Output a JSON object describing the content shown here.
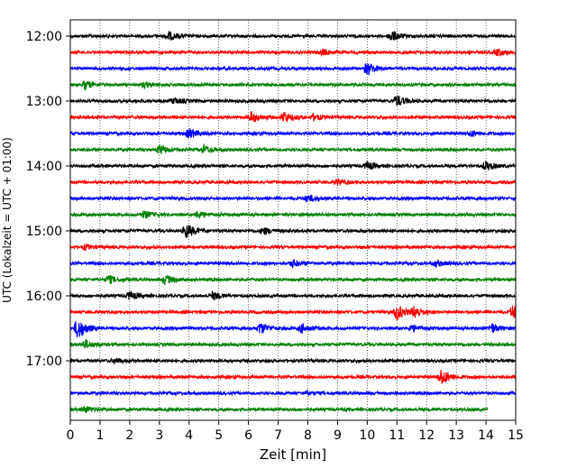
{
  "chart_data": {
    "type": "line",
    "title": "",
    "xlabel": "Zeit  [min]",
    "ylabel": "UTC (Lokalzeit = UTC + 01:00)",
    "xlim": [
      0,
      15
    ],
    "x_ticks": [
      0,
      1,
      2,
      3,
      4,
      5,
      6,
      7,
      8,
      9,
      10,
      11,
      12,
      13,
      14,
      15
    ],
    "x_tick_labels": [
      "0",
      "1",
      "2",
      "3",
      "4",
      "5",
      "6",
      "7",
      "8",
      "9",
      "10",
      "11",
      "12",
      "13",
      "14",
      "15"
    ],
    "y_tick_labels": [
      "12:00",
      "13:00",
      "14:00",
      "15:00",
      "16:00",
      "17:00"
    ],
    "y_tick_traces": [
      0,
      4,
      8,
      12,
      16,
      20
    ],
    "trace_interval_min": 15,
    "trace_colors": [
      "#000000",
      "#ff0000",
      "#0000ff",
      "#008000"
    ],
    "vertical_grid": true,
    "grid_style": "dotted",
    "traces": [
      {
        "start": "12:00",
        "events": [
          [
            3.3,
            0.8
          ],
          [
            10.8,
            1.0
          ]
        ]
      },
      {
        "start": "12:15",
        "events": [
          [
            8.5,
            0.5
          ],
          [
            14.4,
            0.6
          ]
        ]
      },
      {
        "start": "12:30",
        "events": [
          [
            10.0,
            1.2
          ]
        ]
      },
      {
        "start": "12:45",
        "events": [
          [
            0.5,
            0.7
          ],
          [
            2.5,
            0.5
          ]
        ]
      },
      {
        "start": "13:00",
        "events": [
          [
            11.0,
            1.0
          ],
          [
            3.5,
            0.5
          ]
        ]
      },
      {
        "start": "13:15",
        "events": [
          [
            6.1,
            1.0
          ],
          [
            7.2,
            1.0
          ],
          [
            8.2,
            0.5
          ]
        ]
      },
      {
        "start": "13:30",
        "events": [
          [
            4.0,
            0.9
          ],
          [
            13.5,
            0.5
          ]
        ]
      },
      {
        "start": "13:45",
        "events": [
          [
            3.0,
            0.8
          ],
          [
            4.5,
            0.7
          ]
        ]
      },
      {
        "start": "14:00",
        "events": [
          [
            10.0,
            0.7
          ],
          [
            14.0,
            0.8
          ]
        ]
      },
      {
        "start": "14:15",
        "events": [
          [
            9.0,
            0.5
          ]
        ]
      },
      {
        "start": "14:30",
        "events": [
          [
            8.0,
            0.6
          ]
        ]
      },
      {
        "start": "14:45",
        "events": [
          [
            2.5,
            0.6
          ],
          [
            4.3,
            0.6
          ]
        ]
      },
      {
        "start": "15:00",
        "events": [
          [
            3.9,
            1.3
          ],
          [
            6.5,
            0.6
          ]
        ]
      },
      {
        "start": "15:15",
        "events": [
          [
            0.5,
            0.4
          ]
        ]
      },
      {
        "start": "15:30",
        "events": [
          [
            7.5,
            0.6
          ],
          [
            12.3,
            0.5
          ]
        ]
      },
      {
        "start": "15:45",
        "events": [
          [
            1.3,
            0.7
          ],
          [
            3.2,
            0.8
          ]
        ]
      },
      {
        "start": "16:00",
        "events": [
          [
            2.0,
            0.7
          ],
          [
            4.8,
            0.7
          ]
        ]
      },
      {
        "start": "16:15",
        "events": [
          [
            11.0,
            1.4
          ],
          [
            11.6,
            1.0
          ],
          [
            14.9,
            1.3
          ]
        ]
      },
      {
        "start": "16:30",
        "events": [
          [
            0.25,
            2.0
          ],
          [
            6.4,
            1.0
          ],
          [
            7.8,
            0.8
          ],
          [
            11.5,
            0.6
          ],
          [
            14.2,
            0.8
          ]
        ]
      },
      {
        "start": "16:45",
        "events": [
          [
            0.5,
            0.8
          ]
        ]
      },
      {
        "start": "17:00",
        "events": [
          [
            1.5,
            0.4
          ]
        ]
      },
      {
        "start": "17:15",
        "events": [
          [
            12.5,
            1.5
          ]
        ]
      },
      {
        "start": "17:30",
        "events": [
          [
            8.0,
            0.3
          ]
        ]
      },
      {
        "start": "17:45",
        "end_min": 14.05,
        "events": [
          [
            0.5,
            0.5
          ]
        ]
      }
    ]
  }
}
